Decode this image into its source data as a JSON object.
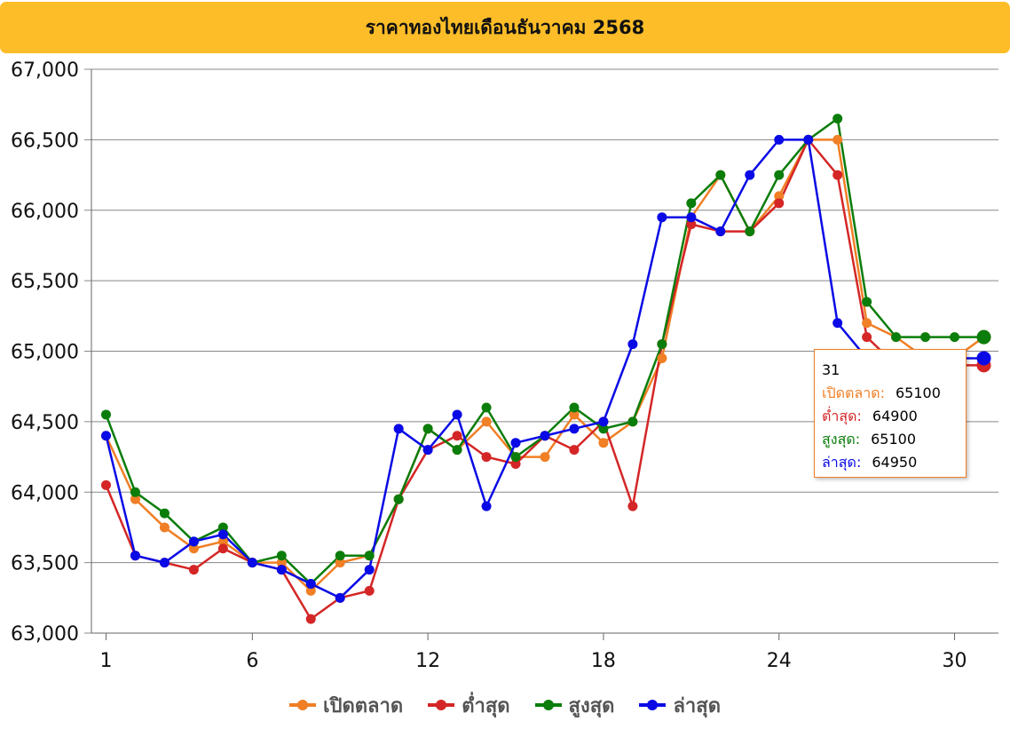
{
  "chart_data": {
    "type": "line",
    "title": "ราคาทองไทยเดือนธันวาคม 2568",
    "xlabel": "",
    "ylabel": "",
    "ylim": [
      63000,
      67000
    ],
    "yticks": [
      63000,
      63500,
      64000,
      64500,
      65000,
      65500,
      66000,
      66500,
      67000
    ],
    "ytick_labels": [
      "63,000",
      "63,500",
      "64,000",
      "64,500",
      "65,000",
      "65,500",
      "66,000",
      "66,500",
      "67,000"
    ],
    "x": [
      1,
      2,
      3,
      4,
      5,
      6,
      7,
      8,
      9,
      10,
      11,
      12,
      13,
      14,
      15,
      16,
      17,
      18,
      19,
      20,
      21,
      22,
      23,
      24,
      25,
      26,
      27,
      28,
      29,
      30,
      31
    ],
    "xticks": [
      1,
      6,
      12,
      18,
      24,
      30
    ],
    "grid": true,
    "legend_position": "bottom",
    "series": [
      {
        "name": "เปิดตลาด",
        "color": "#f07f25",
        "values": [
          64400,
          63950,
          63750,
          63600,
          63650,
          63500,
          63500,
          63300,
          63500,
          63550,
          63950,
          64450,
          64300,
          64500,
          64250,
          64250,
          64550,
          64350,
          64500,
          64950,
          65950,
          66250,
          65850,
          66100,
          66500,
          66500,
          65200,
          65100,
          64950,
          64950,
          65100
        ]
      },
      {
        "name": "ต่ำสุด",
        "color": "#d42626",
        "values": [
          64050,
          63550,
          63500,
          63450,
          63600,
          63500,
          63450,
          63100,
          63250,
          63300,
          63950,
          64300,
          64400,
          64250,
          64200,
          64400,
          64300,
          64500,
          63900,
          65050,
          65900,
          65850,
          65850,
          66050,
          66500,
          66250,
          65100,
          64900,
          64900,
          64900,
          64900
        ]
      },
      {
        "name": "สูงสุด",
        "color": "#0b7d0b",
        "values": [
          64550,
          64000,
          63850,
          63650,
          63750,
          63500,
          63550,
          63350,
          63550,
          63550,
          63950,
          64450,
          64300,
          64600,
          64250,
          64400,
          64600,
          64450,
          64500,
          65050,
          66050,
          66250,
          65850,
          66250,
          66500,
          66650,
          65350,
          65100,
          65100,
          65100,
          65100
        ]
      },
      {
        "name": "ล่าสุด",
        "color": "#0a0ae6",
        "values": [
          64400,
          63550,
          63500,
          63650,
          63700,
          63500,
          63450,
          63350,
          63250,
          63450,
          64450,
          64300,
          64550,
          63900,
          64350,
          64400,
          64450,
          64500,
          65050,
          65950,
          65950,
          65850,
          66250,
          66500,
          66500,
          65200,
          64950,
          64950,
          64950,
          64950,
          64950
        ]
      }
    ],
    "tooltip": {
      "label": "31",
      "rows": [
        {
          "name": "เปิดตลาด:",
          "value": "65100",
          "color": "#f07f25"
        },
        {
          "name": "ต่ำสุด:",
          "value": "64900",
          "color": "#d42626"
        },
        {
          "name": "สูงสุด:",
          "value": "65100",
          "color": "#0b7d0b"
        },
        {
          "name": "ล่าสุด:",
          "value": "64950",
          "color": "#0a0ae6"
        }
      ]
    },
    "colors": {
      "title_background": "#fdbd28",
      "grid": "#888888",
      "tooltip_border": "#f07f25"
    }
  }
}
